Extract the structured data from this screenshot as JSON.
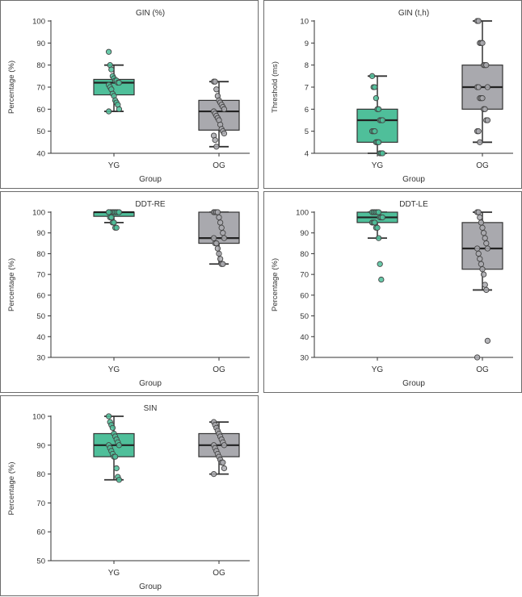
{
  "chart_data": [
    {
      "id": "gin-percent",
      "type": "boxplot",
      "title": "GIN (%)",
      "xlabel": "Group",
      "ylabel": "Percentage (%)",
      "ylim": [
        40,
        100
      ],
      "yticks": [
        40,
        50,
        60,
        70,
        80,
        90,
        100
      ],
      "groups": [
        {
          "name": "YG",
          "color": "#4fbf9a",
          "whisker_low": 59,
          "q1": 66.5,
          "median": 72,
          "q3": 73.5,
          "whisker_high": 80,
          "points": [
            86,
            80,
            78,
            75,
            74,
            73,
            73,
            72,
            72,
            71,
            70,
            69,
            67,
            66,
            64,
            63,
            62,
            60,
            59
          ]
        },
        {
          "name": "OG",
          "color": "#a9a9ae",
          "whisker_low": 43,
          "q1": 50.5,
          "median": 59,
          "q3": 64,
          "whisker_high": 72.5,
          "points": [
            72.5,
            72.5,
            69,
            66,
            64,
            63,
            62,
            61,
            60,
            59,
            58,
            57,
            56,
            55,
            53,
            51,
            50,
            49,
            48,
            46,
            43
          ]
        }
      ]
    },
    {
      "id": "gin-threshold",
      "type": "boxplot",
      "title": "GIN (t,h)",
      "xlabel": "Group",
      "ylabel": "Threshold (ms)",
      "ylim": [
        4,
        10
      ],
      "yticks": [
        4,
        5,
        6,
        7,
        8,
        9,
        10
      ],
      "groups": [
        {
          "name": "YG",
          "color": "#4fbf9a",
          "whisker_low": 4,
          "q1": 4.5,
          "median": 5.5,
          "q3": 6,
          "whisker_high": 7.5,
          "points": [
            7.5,
            7,
            7,
            6.5,
            6,
            6,
            5.5,
            5.5,
            5.5,
            5,
            5,
            5,
            4.5,
            4.5,
            4.5,
            4,
            4,
            4
          ]
        },
        {
          "name": "OG",
          "color": "#a9a9ae",
          "whisker_low": 4.5,
          "q1": 6,
          "median": 7,
          "q3": 8,
          "whisker_high": 10,
          "points": [
            10,
            10,
            9,
            9,
            9,
            8,
            8,
            8,
            7,
            7,
            7,
            6.5,
            6.5,
            6.5,
            6,
            6,
            5.5,
            5.5,
            5,
            5,
            4.5
          ]
        }
      ]
    },
    {
      "id": "ddt-re",
      "type": "boxplot",
      "title": "DDT-RE",
      "xlabel": "Group",
      "ylabel": "Percentage (%)",
      "ylim": [
        30,
        100
      ],
      "yticks": [
        30,
        40,
        50,
        60,
        70,
        80,
        90,
        100
      ],
      "groups": [
        {
          "name": "YG",
          "color": "#4fbf9a",
          "whisker_low": 95,
          "q1": 98,
          "median": 100,
          "q3": 100,
          "whisker_high": 100,
          "points": [
            100,
            100,
            100,
            100,
            100,
            100,
            100,
            100,
            100,
            100,
            97.5,
            97.5,
            95,
            95,
            92.5,
            92.5
          ]
        },
        {
          "name": "OG",
          "color": "#a9a9ae",
          "whisker_low": 75,
          "q1": 85,
          "median": 87.5,
          "q3": 100,
          "whisker_high": 100,
          "points": [
            100,
            100,
            100,
            100,
            97.5,
            95,
            92.5,
            90,
            87.5,
            87.5,
            85,
            85,
            82.5,
            80,
            77.5,
            75,
            75
          ]
        }
      ]
    },
    {
      "id": "ddt-le",
      "type": "boxplot",
      "title": "DDT-LE",
      "xlabel": "Group",
      "ylabel": "Percentage (%)",
      "ylim": [
        30,
        100
      ],
      "yticks": [
        30,
        40,
        50,
        60,
        70,
        80,
        90,
        100
      ],
      "groups": [
        {
          "name": "YG",
          "color": "#4fbf9a",
          "whisker_low": 87.5,
          "q1": 95,
          "median": 97.5,
          "q3": 100,
          "whisker_high": 100,
          "points": [
            100,
            100,
            100,
            100,
            100,
            100,
            97.5,
            97.5,
            97.5,
            95,
            95,
            95,
            92.5,
            92.5,
            87.5,
            75,
            67.5
          ]
        },
        {
          "name": "OG",
          "color": "#a9a9ae",
          "whisker_low": 62.5,
          "q1": 72.5,
          "median": 82.5,
          "q3": 95,
          "whisker_high": 100,
          "points": [
            100,
            100,
            97.5,
            95,
            92.5,
            90,
            87.5,
            85,
            82.5,
            82.5,
            80,
            77.5,
            75,
            72.5,
            70,
            65,
            62.5,
            38,
            30
          ]
        }
      ]
    },
    {
      "id": "sin",
      "type": "boxplot",
      "title": "SIN",
      "xlabel": "Group",
      "ylabel": "Percentage (%)",
      "ylim": [
        50,
        100
      ],
      "yticks": [
        50,
        60,
        70,
        80,
        90,
        100
      ],
      "groups": [
        {
          "name": "YG",
          "color": "#4fbf9a",
          "whisker_low": 78,
          "q1": 86,
          "median": 90,
          "q3": 94,
          "whisker_high": 100,
          "points": [
            100,
            98,
            97,
            96,
            94,
            93,
            92,
            91,
            90,
            90,
            89,
            88,
            87,
            86,
            86,
            82,
            79,
            78
          ]
        },
        {
          "name": "OG",
          "color": "#a9a9ae",
          "whisker_low": 80,
          "q1": 86,
          "median": 90,
          "q3": 94,
          "whisker_high": 98,
          "points": [
            98,
            97,
            96,
            95,
            94,
            93,
            92,
            91,
            90,
            90,
            89,
            88,
            87,
            86,
            85,
            84,
            84,
            82,
            80
          ]
        }
      ]
    }
  ]
}
